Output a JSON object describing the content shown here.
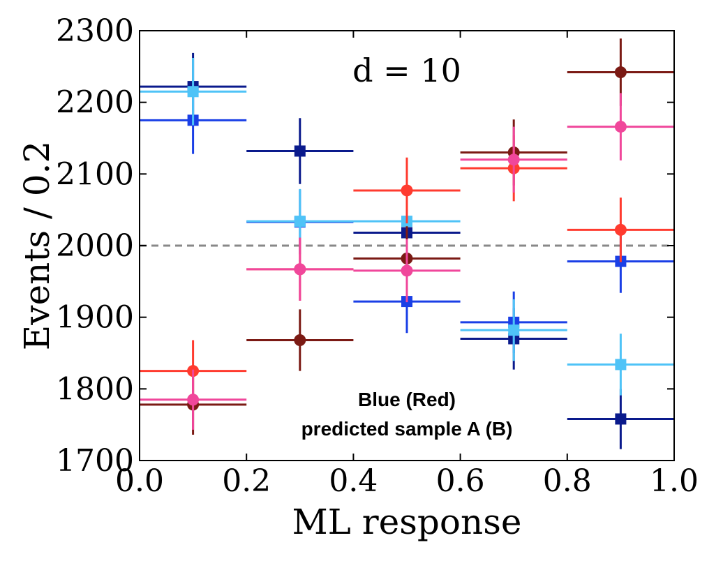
{
  "chart_data": {
    "type": "scatter",
    "xlabel": "ML response",
    "ylabel": "Events / 0.2",
    "xlim": [
      0.0,
      1.0
    ],
    "ylim": [
      1700,
      2300
    ],
    "xticks": [
      "0.0",
      "0.2",
      "0.4",
      "0.6",
      "0.8",
      "1.0"
    ],
    "yticks": [
      "1700",
      "1800",
      "1900",
      "2000",
      "2100",
      "2200",
      "2300"
    ],
    "reference_line": {
      "y": 2000,
      "style": "dashed",
      "color": "#888888"
    },
    "annotation_d": "d = 10",
    "annotation_line1": "Blue (Red)",
    "annotation_line2": "predicted sample A (B)",
    "bin_edges": [
      0.0,
      0.2,
      0.4,
      0.6,
      0.8,
      1.0
    ],
    "x_centers": [
      0.1,
      0.3,
      0.5,
      0.7,
      0.9
    ],
    "series": [
      {
        "marker": "square",
        "color": "#0a1a8c",
        "values": [
          2222,
          2132,
          2018,
          1870,
          1758
        ],
        "errors": [
          47,
          46,
          45,
          43,
          42
        ]
      },
      {
        "marker": "square",
        "color": "#1a3fe6",
        "values": [
          2175,
          2033,
          1922,
          1893,
          1978
        ],
        "errors": [
          47,
          45,
          44,
          43,
          44
        ]
      },
      {
        "marker": "square",
        "color": "#4fc3f7",
        "values": [
          2215,
          2034,
          2034,
          1882,
          1834
        ],
        "errors": [
          47,
          45,
          45,
          43,
          43
        ]
      },
      {
        "marker": "circle",
        "color": "#7b1a14",
        "values": [
          1778,
          1868,
          1982,
          2130,
          2242
        ],
        "errors": [
          42,
          43,
          45,
          46,
          47
        ]
      },
      {
        "marker": "circle",
        "color": "#ff3b2f",
        "values": [
          1825,
          1967,
          2077,
          2108,
          2022
        ],
        "errors": [
          43,
          44,
          46,
          46,
          45
        ]
      },
      {
        "marker": "circle",
        "color": "#f0479b",
        "values": [
          1785,
          1967,
          1965,
          2120,
          2166
        ],
        "errors": [
          42,
          44,
          44,
          46,
          47
        ]
      }
    ]
  }
}
